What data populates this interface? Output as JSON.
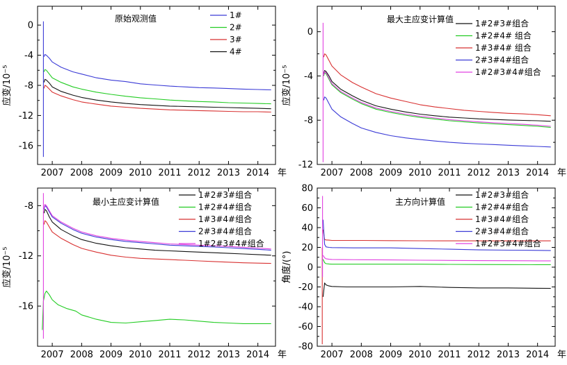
{
  "chart_data": [
    {
      "type": "line",
      "title": "原始观测值",
      "ylabel": "应变/10⁻⁵",
      "xunit": "年",
      "xlim": [
        2006.5,
        2014.6
      ],
      "ylim": [
        -18.5,
        2.5
      ],
      "yticks": [
        0,
        -4,
        -8,
        -12,
        -16
      ],
      "xticks": [
        2007,
        2008,
        2009,
        2010,
        2011,
        2012,
        2013,
        2014
      ],
      "legend_pos": "top-right",
      "series": [
        {
          "name": "1#",
          "color": "#3a3ad6",
          "x": [
            2006.72,
            2006.75,
            2006.8,
            2006.9,
            2007.0,
            2007.3,
            2007.7,
            2008.0,
            2008.5,
            2009.0,
            2009.5,
            2010.0,
            2010.5,
            2011.0,
            2011.5,
            2012.0,
            2012.5,
            2013.0,
            2013.5,
            2014.0,
            2014.45
          ],
          "y": [
            -4.2,
            -3.9,
            -4.0,
            -4.4,
            -4.9,
            -5.6,
            -6.2,
            -6.5,
            -7.0,
            -7.3,
            -7.5,
            -7.8,
            -7.95,
            -8.1,
            -8.2,
            -8.3,
            -8.35,
            -8.42,
            -8.5,
            -8.55,
            -8.6
          ]
        },
        {
          "name": "2#",
          "color": "#22cc22",
          "x": [
            2006.72,
            2006.75,
            2006.8,
            2006.9,
            2007.0,
            2007.3,
            2007.7,
            2008.0,
            2008.5,
            2009.0,
            2009.5,
            2010.0,
            2010.5,
            2011.0,
            2011.5,
            2012.0,
            2012.5,
            2013.0,
            2013.5,
            2014.0,
            2014.45
          ],
          "y": [
            -6.2,
            -5.9,
            -6.0,
            -6.5,
            -7.0,
            -7.6,
            -8.2,
            -8.5,
            -8.9,
            -9.2,
            -9.45,
            -9.65,
            -9.8,
            -9.95,
            -10.05,
            -10.15,
            -10.2,
            -10.3,
            -10.35,
            -10.4,
            -10.45
          ]
        },
        {
          "name": "3#",
          "color": "#d83030",
          "x": [
            2006.72,
            2006.75,
            2006.8,
            2006.9,
            2007.0,
            2007.3,
            2007.7,
            2008.0,
            2008.5,
            2009.0,
            2009.5,
            2010.0,
            2010.5,
            2011.0,
            2011.5,
            2012.0,
            2012.5,
            2013.0,
            2013.5,
            2014.0,
            2014.45
          ],
          "y": [
            -8.4,
            -8.0,
            -8.1,
            -8.5,
            -8.9,
            -9.4,
            -9.9,
            -10.2,
            -10.5,
            -10.75,
            -10.9,
            -11.05,
            -11.15,
            -11.25,
            -11.3,
            -11.35,
            -11.4,
            -11.45,
            -11.5,
            -11.5,
            -11.55
          ]
        },
        {
          "name": "4#",
          "color": "#111111",
          "x": [
            2006.72,
            2006.75,
            2006.8,
            2006.9,
            2007.0,
            2007.3,
            2007.7,
            2008.0,
            2008.5,
            2009.0,
            2009.5,
            2010.0,
            2010.5,
            2011.0,
            2011.5,
            2012.0,
            2012.5,
            2013.0,
            2013.5,
            2014.0,
            2014.45
          ],
          "y": [
            -7.6,
            -7.2,
            -7.3,
            -7.7,
            -8.2,
            -8.8,
            -9.3,
            -9.6,
            -9.95,
            -10.2,
            -10.4,
            -10.55,
            -10.65,
            -10.75,
            -10.8,
            -10.85,
            -10.9,
            -10.95,
            -11.0,
            -11.05,
            -11.1
          ]
        },
        {
          "name": "spike",
          "legend": false,
          "color": "#3a3ad6",
          "x": [
            2006.7,
            2006.7
          ],
          "y": [
            -17.5,
            0.5
          ]
        }
      ]
    },
    {
      "type": "line",
      "title": "最大主应变计算值",
      "ylabel": "应变/10⁻⁵",
      "xunit": "年",
      "xlim": [
        2006.5,
        2014.6
      ],
      "ylim": [
        -12,
        2.3
      ],
      "yticks": [
        0,
        -4,
        -8,
        -12
      ],
      "xticks": [
        2007,
        2008,
        2009,
        2010,
        2011,
        2012,
        2013,
        2014
      ],
      "legend_pos": "top-right",
      "series": [
        {
          "name": "1#2#3#组合",
          "color": "#111111",
          "x": [
            2006.72,
            2006.75,
            2006.8,
            2006.9,
            2007.0,
            2007.3,
            2007.7,
            2008.0,
            2008.5,
            2009.0,
            2009.5,
            2010.0,
            2010.5,
            2011.0,
            2011.5,
            2012.0,
            2012.5,
            2013.0,
            2013.5,
            2014.0,
            2014.45
          ],
          "y": [
            -3.8,
            -3.5,
            -3.6,
            -4.0,
            -4.5,
            -5.2,
            -5.8,
            -6.2,
            -6.7,
            -7.0,
            -7.25,
            -7.45,
            -7.6,
            -7.72,
            -7.8,
            -7.88,
            -7.93,
            -7.98,
            -8.02,
            -8.05,
            -8.1
          ]
        },
        {
          "name": "1#2#4# 组合",
          "color": "#22cc22",
          "x": [
            2006.72,
            2006.75,
            2006.8,
            2006.9,
            2007.0,
            2007.3,
            2007.7,
            2008.0,
            2008.5,
            2009.0,
            2009.5,
            2010.0,
            2010.5,
            2011.0,
            2011.5,
            2012.0,
            2012.5,
            2013.0,
            2013.5,
            2014.0,
            2014.45
          ],
          "y": [
            -4.0,
            -3.7,
            -3.8,
            -4.3,
            -4.8,
            -5.5,
            -6.1,
            -6.5,
            -7.0,
            -7.3,
            -7.55,
            -7.75,
            -7.9,
            -8.05,
            -8.15,
            -8.25,
            -8.33,
            -8.4,
            -8.47,
            -8.55,
            -8.65
          ]
        },
        {
          "name": "1#3#4# 组合",
          "color": "#d83030",
          "x": [
            2006.72,
            2006.75,
            2006.8,
            2006.9,
            2007.0,
            2007.3,
            2007.7,
            2008.0,
            2008.5,
            2009.0,
            2009.5,
            2010.0,
            2010.5,
            2011.0,
            2011.5,
            2012.0,
            2012.5,
            2013.0,
            2013.5,
            2014.0,
            2014.45
          ],
          "y": [
            -2.3,
            -2.0,
            -2.1,
            -2.6,
            -3.1,
            -3.9,
            -4.6,
            -5.0,
            -5.6,
            -6.0,
            -6.3,
            -6.6,
            -6.8,
            -6.95,
            -7.1,
            -7.2,
            -7.3,
            -7.38,
            -7.43,
            -7.5,
            -7.6
          ]
        },
        {
          "name": "2#3#4#组合",
          "color": "#3a3ad6",
          "x": [
            2006.72,
            2006.75,
            2006.8,
            2006.9,
            2007.0,
            2007.3,
            2007.7,
            2008.0,
            2008.5,
            2009.0,
            2009.5,
            2010.0,
            2010.5,
            2011.0,
            2011.5,
            2012.0,
            2012.5,
            2013.0,
            2013.5,
            2014.0,
            2014.45
          ],
          "y": [
            -6.2,
            -5.9,
            -6.0,
            -6.5,
            -7.0,
            -7.7,
            -8.3,
            -8.7,
            -9.1,
            -9.4,
            -9.6,
            -9.75,
            -9.88,
            -10.0,
            -10.08,
            -10.15,
            -10.2,
            -10.26,
            -10.32,
            -10.37,
            -10.42
          ]
        },
        {
          "name": "1#2#3#4#组合",
          "color": "#e040e0",
          "x": [
            2006.72,
            2006.75,
            2006.8,
            2006.9,
            2007.0,
            2007.3,
            2007.7,
            2008.0,
            2008.5,
            2009.0,
            2009.5,
            2010.0,
            2010.5,
            2011.0,
            2011.5,
            2012.0,
            2012.5,
            2013.0,
            2013.5,
            2014.0,
            2014.45
          ],
          "y": [
            -3.9,
            -3.6,
            -3.7,
            -4.2,
            -4.7,
            -5.4,
            -6.0,
            -6.4,
            -6.9,
            -7.2,
            -7.45,
            -7.65,
            -7.8,
            -7.95,
            -8.05,
            -8.15,
            -8.23,
            -8.3,
            -8.37,
            -8.45,
            -8.55
          ]
        },
        {
          "name": "spike",
          "legend": false,
          "color": "#e040e0",
          "x": [
            2006.7,
            2006.7
          ],
          "y": [
            -11.8,
            0.8
          ]
        }
      ]
    },
    {
      "type": "line",
      "title": "最小主应变计算值",
      "ylabel": "应变/10⁻⁵",
      "xunit": "年",
      "xlim": [
        2006.5,
        2014.6
      ],
      "ylim": [
        -19.2,
        -6.6
      ],
      "yticks": [
        -8,
        -12,
        -16
      ],
      "xticks": [
        2007,
        2008,
        2009,
        2010,
        2011,
        2012,
        2013,
        2014
      ],
      "legend_pos": "top-right",
      "series": [
        {
          "name": "1#2#3#组合",
          "color": "#111111",
          "x": [
            2006.72,
            2006.75,
            2006.8,
            2006.9,
            2007.0,
            2007.3,
            2007.7,
            2008.0,
            2008.5,
            2009.0,
            2009.5,
            2010.0,
            2010.5,
            2011.0,
            2011.5,
            2012.0,
            2012.5,
            2013.0,
            2013.5,
            2014.0,
            2014.45
          ],
          "y": [
            -8.6,
            -8.3,
            -8.4,
            -8.9,
            -9.3,
            -9.9,
            -10.4,
            -10.7,
            -11.0,
            -11.2,
            -11.35,
            -11.45,
            -11.55,
            -11.6,
            -11.65,
            -11.7,
            -11.75,
            -11.8,
            -11.85,
            -11.9,
            -11.95
          ]
        },
        {
          "name": "1#2#4#组合",
          "color": "#22cc22",
          "x": [
            2006.66,
            2006.7,
            2006.75,
            2006.8,
            2006.9,
            2007.0,
            2007.2,
            2007.5,
            2007.8,
            2008.0,
            2008.5,
            2009.0,
            2009.5,
            2010.0,
            2010.5,
            2011.0,
            2011.5,
            2012.0,
            2012.5,
            2013.0,
            2013.5,
            2014.0,
            2014.45
          ],
          "y": [
            -17.9,
            -15.6,
            -15.0,
            -14.8,
            -15.1,
            -15.5,
            -15.9,
            -16.2,
            -16.4,
            -16.7,
            -17.05,
            -17.3,
            -17.35,
            -17.25,
            -17.15,
            -17.05,
            -17.1,
            -17.2,
            -17.3,
            -17.35,
            -17.4,
            -17.4,
            -17.4
          ]
        },
        {
          "name": "1#3#4#组合",
          "color": "#d83030",
          "x": [
            2006.72,
            2006.75,
            2006.8,
            2006.9,
            2007.0,
            2007.3,
            2007.7,
            2008.0,
            2008.5,
            2009.0,
            2009.5,
            2010.0,
            2010.5,
            2011.0,
            2011.5,
            2012.0,
            2012.5,
            2013.0,
            2013.5,
            2014.0,
            2014.45
          ],
          "y": [
            -9.5,
            -9.2,
            -9.3,
            -9.7,
            -10.1,
            -10.6,
            -11.1,
            -11.4,
            -11.7,
            -11.95,
            -12.1,
            -12.2,
            -12.25,
            -12.3,
            -12.35,
            -12.4,
            -12.45,
            -12.5,
            -12.55,
            -12.58,
            -12.6
          ]
        },
        {
          "name": "2#3#4#组合",
          "color": "#3a3ad6",
          "x": [
            2006.72,
            2006.75,
            2006.8,
            2006.9,
            2007.0,
            2007.3,
            2007.7,
            2008.0,
            2008.5,
            2009.0,
            2009.5,
            2010.0,
            2010.5,
            2011.0,
            2011.5,
            2012.0,
            2012.5,
            2013.0,
            2013.5,
            2014.0,
            2014.45
          ],
          "y": [
            -8.3,
            -8.0,
            -8.1,
            -8.5,
            -8.9,
            -9.4,
            -9.9,
            -10.2,
            -10.5,
            -10.7,
            -10.85,
            -10.95,
            -11.05,
            -11.15,
            -11.2,
            -11.25,
            -11.3,
            -11.35,
            -11.42,
            -11.48,
            -11.55
          ]
        },
        {
          "name": "1#2#3#4#组合",
          "color": "#e040e0",
          "x": [
            2006.72,
            2006.75,
            2006.8,
            2006.9,
            2007.0,
            2007.3,
            2007.7,
            2008.0,
            2008.5,
            2009.0,
            2009.5,
            2010.0,
            2010.5,
            2011.0,
            2011.5,
            2012.0,
            2012.5,
            2013.0,
            2013.5,
            2014.0,
            2014.45
          ],
          "y": [
            -8.2,
            -7.9,
            -8.0,
            -8.4,
            -8.8,
            -9.3,
            -9.8,
            -10.1,
            -10.4,
            -10.6,
            -10.75,
            -10.85,
            -10.95,
            -11.05,
            -11.1,
            -11.15,
            -11.2,
            -11.25,
            -11.32,
            -11.38,
            -11.45
          ]
        },
        {
          "name": "spike",
          "legend": false,
          "color": "#e040e0",
          "x": [
            2006.7,
            2006.7
          ],
          "y": [
            -18.6,
            -7.0
          ]
        }
      ]
    },
    {
      "type": "line",
      "title": "主方向计算值",
      "ylabel": "角度/(°)",
      "xunit": "年",
      "xlim": [
        2006.5,
        2014.6
      ],
      "ylim": [
        -80,
        80
      ],
      "yticks": [
        80,
        60,
        40,
        20,
        0,
        -20,
        -40,
        -60,
        -80
      ],
      "xticks": [
        2007,
        2008,
        2009,
        2010,
        2011,
        2012,
        2013,
        2014
      ],
      "legend_pos": "top-right",
      "series": [
        {
          "name": "1#2#3#组合",
          "color": "#111111",
          "x": [
            2006.7,
            2006.75,
            2006.8,
            2006.9,
            2007.0,
            2007.5,
            2008.0,
            2009.0,
            2010.0,
            2011.0,
            2012.0,
            2013.0,
            2014.0,
            2014.45
          ],
          "y": [
            -30,
            -16,
            -18,
            -19,
            -19.5,
            -20,
            -20,
            -20,
            -19.5,
            -20.5,
            -21,
            -21,
            -21.3,
            -21.5
          ]
        },
        {
          "name": "1#2#4#组合",
          "color": "#22cc22",
          "x": [
            2006.7,
            2006.75,
            2006.8,
            2006.9,
            2007.0,
            2007.5,
            2008.0,
            2009.0,
            2010.0,
            2011.0,
            2012.0,
            2013.0,
            2014.0,
            2014.45
          ],
          "y": [
            8,
            4.5,
            3.5,
            3.2,
            3.0,
            3.0,
            3.0,
            3.0,
            3.0,
            2.8,
            2.7,
            2.6,
            2.5,
            2.5
          ]
        },
        {
          "name": "1#3#4#组合",
          "color": "#d83030",
          "x": [
            2006.7,
            2006.75,
            2006.8,
            2006.9,
            2007.0,
            2007.5,
            2008.0,
            2009.0,
            2010.0,
            2011.0,
            2012.0,
            2013.0,
            2014.0,
            2014.45
          ],
          "y": [
            38,
            28,
            27.5,
            27.3,
            27.0,
            27.0,
            27.0,
            26.8,
            26.7,
            26.6,
            26.6,
            26.6,
            26.6,
            26.6
          ]
        },
        {
          "name": "2#3#4#组合",
          "color": "#3a3ad6",
          "x": [
            2006.7,
            2006.75,
            2006.8,
            2006.9,
            2007.0,
            2007.5,
            2008.0,
            2009.0,
            2010.0,
            2011.0,
            2012.0,
            2013.0,
            2014.0,
            2014.45
          ],
          "y": [
            48,
            23,
            20.5,
            20.0,
            19.8,
            19.6,
            19.5,
            19.5,
            18.8,
            18.2,
            17.5,
            17.2,
            17.0,
            16.8
          ]
        },
        {
          "name": "1#2#3#4#组合",
          "color": "#e040e0",
          "x": [
            2006.7,
            2006.75,
            2006.8,
            2006.9,
            2007.0,
            2007.5,
            2008.0,
            2009.0,
            2010.0,
            2011.0,
            2012.0,
            2013.0,
            2014.0,
            2014.45
          ],
          "y": [
            12,
            9.5,
            8.5,
            8.0,
            7.8,
            7.6,
            7.5,
            7.3,
            7.0,
            6.8,
            6.6,
            6.5,
            6.4,
            6.4
          ]
        },
        {
          "name": "spike",
          "legend": false,
          "color": "#d83030",
          "x": [
            2006.67,
            2006.67
          ],
          "y": [
            -78,
            20
          ]
        },
        {
          "name": "spike2",
          "legend": false,
          "color": "#e040e0",
          "x": [
            2006.68,
            2006.68
          ],
          "y": [
            -10,
            72
          ]
        }
      ]
    }
  ]
}
